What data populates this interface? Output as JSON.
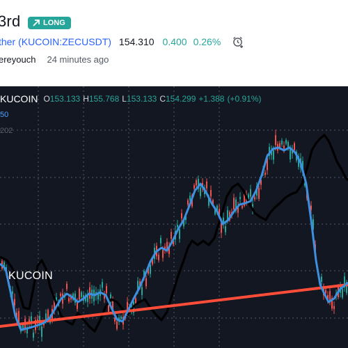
{
  "header": {
    "title": "3rd",
    "badge_label": "LONG",
    "symbol_prefix": "ther",
    "symbol_paren_open": "(",
    "symbol": "KUCOIN:ZECUSDT",
    "symbol_paren_close": ")",
    "price": "154.310",
    "change": "0.400",
    "change_pct": "0.26%",
    "author": "ereyouch",
    "time_ago": "24 minutes ago"
  },
  "chart": {
    "legend": {
      "symbol": "KUCOIN",
      "open_key": "O",
      "open": "153.133",
      "high_key": "H",
      "high": "155.768",
      "low_key": "L",
      "low": "153.133",
      "close_key": "C",
      "close": "154.299",
      "change": "+1.388",
      "change_pct": "(+0.91%)"
    },
    "indicator_1": "50",
    "indicator_2": "202",
    "watermark": "KUCOIN",
    "colors": {
      "background": "#131722",
      "up": "#26a69a",
      "down": "#ef5350",
      "ma_line": "#3d8fe0",
      "other_line": "#000000",
      "trend_line": "#ff4d3a"
    }
  },
  "colors": {
    "accent": "#2962ff",
    "positive": "#26a69a"
  },
  "icons": {
    "badge_icon": "arrow-up-right-icon",
    "alert_icon": "alarm-clock-add-icon"
  }
}
